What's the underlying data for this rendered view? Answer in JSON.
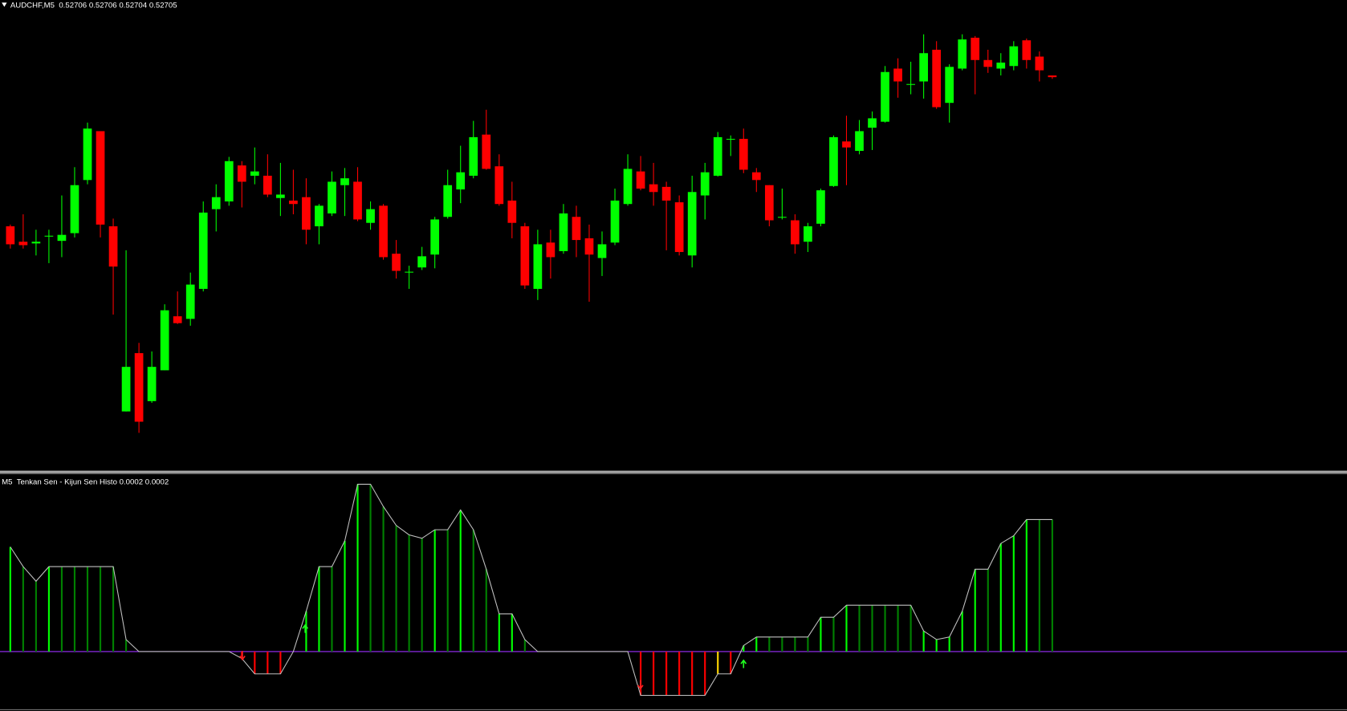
{
  "chart_data": [
    {
      "type": "candlestick",
      "title": "AUDCHF,M5",
      "open": [
        0.52618,
        0.52609,
        0.52608,
        0.52612,
        0.526095,
        0.52614,
        0.52645,
        0.526735,
        0.52618,
        0.5251,
        0.52544,
        0.52516,
        0.52534,
        0.525655,
        0.52564,
        0.525815,
        0.52628,
        0.526325,
        0.526535,
        0.526475,
        0.526475,
        0.526345,
        0.52633,
        0.52635,
        0.52618,
        0.526255,
        0.52642,
        0.52644,
        0.5262,
        0.5263,
        0.52602,
        0.52591,
        0.52594,
        0.526015,
        0.526235,
        0.526395,
        0.526475,
        0.526715,
        0.52653,
        0.52633,
        0.52618,
        0.525815,
        0.526085,
        0.526035,
        0.526235,
        0.52611,
        0.525995,
        0.526085,
        0.52631,
        0.5265,
        0.526425,
        0.52641,
        0.52632,
        0.52601,
        0.52636,
        0.526475,
        0.526685,
        0.52669,
        0.526495,
        0.52642,
        0.52623,
        0.526215,
        0.52609,
        0.526195,
        0.526415,
        0.526675,
        0.52662,
        0.526755,
        0.52679,
        0.5271,
        0.527005,
        0.527025,
        0.52721,
        0.5269,
        0.5271,
        0.52728,
        0.52715,
        0.5271,
        0.527115,
        0.527265,
        0.52717,
        0.52706
      ],
      "high": [
        0.52619,
        0.52625,
        0.52616,
        0.52616,
        0.52636,
        0.526525,
        0.526785,
        0.526735,
        0.526225,
        0.52604,
        0.5255,
        0.52545,
        0.525725,
        0.5258,
        0.52591,
        0.526325,
        0.526425,
        0.526585,
        0.52656,
        0.52664,
        0.5266,
        0.52655,
        0.52651,
        0.52646,
        0.52631,
        0.5265,
        0.52652,
        0.526525,
        0.526325,
        0.52631,
        0.5261,
        0.52595,
        0.52606,
        0.526235,
        0.52651,
        0.52665,
        0.526795,
        0.52686,
        0.5266,
        0.52644,
        0.5262,
        0.52616,
        0.52616,
        0.52631,
        0.5263,
        0.52619,
        0.52615,
        0.5264,
        0.5266,
        0.52659,
        0.52655,
        0.52644,
        0.52636,
        0.526475,
        0.52655,
        0.52673,
        0.52671,
        0.52675,
        0.52652,
        0.52642,
        0.5264,
        0.52625,
        0.5262,
        0.5264,
        0.52671,
        0.526825,
        0.5268,
        0.52685,
        0.527115,
        0.52716,
        0.52714,
        0.5273,
        0.52726,
        0.527125,
        0.5273,
        0.52729,
        0.52721,
        0.52719,
        0.52726,
        0.527275,
        0.5272,
        0.52706
      ],
      "low": [
        0.52605,
        0.52605,
        0.52601,
        0.525965,
        0.526,
        0.526115,
        0.526425,
        0.526115,
        0.525665,
        0.5251,
        0.524975,
        0.52515,
        0.52534,
        0.52561,
        0.5256,
        0.5258,
        0.52615,
        0.5263,
        0.52629,
        0.526425,
        0.52635,
        0.52624,
        0.52625,
        0.526075,
        0.526075,
        0.52624,
        0.52624,
        0.52621,
        0.52616,
        0.525985,
        0.525875,
        0.525815,
        0.525925,
        0.525935,
        0.526225,
        0.526315,
        0.52646,
        0.52651,
        0.5263,
        0.52611,
        0.525815,
        0.52575,
        0.525875,
        0.52602,
        0.526,
        0.52574,
        0.52589,
        0.52607,
        0.5263,
        0.52639,
        0.5263,
        0.52604,
        0.52601,
        0.52594,
        0.52622,
        0.52647,
        0.52659,
        0.52649,
        0.52638,
        0.52618,
        0.52622,
        0.52602,
        0.52603,
        0.52618,
        0.52641,
        0.52642,
        0.5266,
        0.526625,
        0.526785,
        0.52693,
        0.52695,
        0.526925,
        0.526865,
        0.526785,
        0.52709,
        0.52695,
        0.527075,
        0.52706,
        0.52709,
        0.5271,
        0.527025,
        0.52704
      ],
      "close": [
        0.526075,
        0.52607,
        0.52609,
        0.526125,
        0.52613,
        0.52642,
        0.52675,
        0.52619,
        0.525945,
        0.52536,
        0.52504,
        0.52536,
        0.52569,
        0.525615,
        0.52584,
        0.52626,
        0.52635,
        0.52656,
        0.52644,
        0.5265,
        0.526365,
        0.526365,
        0.52631,
        0.52616,
        0.5263,
        0.52644,
        0.52646,
        0.52622,
        0.52628,
        0.526,
        0.52592,
        0.525915,
        0.526005,
        0.52622,
        0.52642,
        0.526495,
        0.5267,
        0.526515,
        0.52631,
        0.5262,
        0.525835,
        0.526075,
        0.526,
        0.526255,
        0.5261,
        0.526015,
        0.526075,
        0.52633,
        0.526515,
        0.5264,
        0.52638,
        0.52633,
        0.52603,
        0.52638,
        0.526495,
        0.5267,
        0.52669,
        0.52651,
        0.52645,
        0.526215,
        0.526235,
        0.526075,
        0.52618,
        0.52639,
        0.5267,
        0.52664,
        0.526735,
        0.52681,
        0.52708,
        0.527025,
        0.52701,
        0.52719,
        0.526875,
        0.52711,
        0.52727,
        0.52715,
        0.52711,
        0.527135,
        0.52723,
        0.52715,
        0.52709,
        0.52705
      ],
      "up_color": "#00ff00",
      "down_color": "#ff0000",
      "ylim": [
        0.52476,
        0.52743
      ]
    },
    {
      "type": "bar",
      "title": "M5  Tenkan Sen - Kijun Sen Histo",
      "values": [
        0.0001586,
        0.0001287,
        0.0001066,
        0.0001287,
        0.0001287,
        0.0001287,
        0.0001287,
        0.0001287,
        0.0001287,
        1.82e-05,
        0,
        0,
        0,
        0,
        0,
        0,
        0,
        0,
        -1.04e-05,
        -3.38e-05,
        -3.38e-05,
        -3.38e-05,
        0,
        6.11e-05,
        0.0001287,
        0.0001287,
        0.0001677,
        0.0002535,
        0.0002535,
        0.0002197,
        0.0001911,
        0.0001768,
        0.0001716,
        0.0001846,
        0.0001846,
        0.0002145,
        0.0001846,
        0.0001248,
        5.72e-05,
        5.72e-05,
        1.82e-05,
        0,
        0,
        0,
        0,
        0,
        0,
        0,
        0,
        -6.63e-05,
        -6.63e-05,
        -6.63e-05,
        -6.63e-05,
        -6.63e-05,
        -6.63e-05,
        -3.38e-05,
        -3.38e-05,
        9.1e-06,
        2.21e-05,
        2.21e-05,
        2.21e-05,
        2.21e-05,
        2.21e-05,
        5.2e-05,
        5.2e-05,
        7.02e-05,
        7.02e-05,
        7.02e-05,
        7.02e-05,
        7.02e-05,
        7.02e-05,
        3.12e-05,
        1.82e-05,
        2.21e-05,
        6.11e-05,
        0.0001248,
        0.0001248,
        0.0001638,
        0.0001755,
        0.0002,
        0.0002,
        0.0002
      ],
      "colors": [
        "#00ff00",
        "#008000",
        "#008000",
        "#00ff00",
        "#008000",
        "#008000",
        "#008000",
        "#008000",
        "#008000",
        "#008000",
        "#008000",
        "#008000",
        "#008000",
        "#008000",
        "#008000",
        "#008000",
        "#008000",
        "#008000",
        "#ff0000",
        "#ff0000",
        "#ff0000",
        "#ff0000",
        "#008000",
        "#00ff00",
        "#00ff00",
        "#008000",
        "#00ff00",
        "#00ff00",
        "#008000",
        "#008000",
        "#008000",
        "#008000",
        "#008000",
        "#00ff00",
        "#008000",
        "#00ff00",
        "#008000",
        "#008000",
        "#00ff00",
        "#00ff00",
        "#008000",
        "#008000",
        "#008000",
        "#008000",
        "#008000",
        "#008000",
        "#008000",
        "#008000",
        "#008000",
        "#ff0000",
        "#ff0000",
        "#ff0000",
        "#ff0000",
        "#ff0000",
        "#ff0000",
        "#ffd700",
        "#ff0000",
        "#00ff00",
        "#00ff00",
        "#008000",
        "#008000",
        "#008000",
        "#008000",
        "#00ff00",
        "#008000",
        "#00ff00",
        "#008000",
        "#008000",
        "#008000",
        "#008000",
        "#008000",
        "#00ff00",
        "#00ff00",
        "#00ff00",
        "#00ff00",
        "#00ff00",
        "#008000",
        "#00ff00",
        "#00ff00",
        "#00ff00",
        "#008000",
        "#008000"
      ],
      "line_color": "#c0c0c0",
      "zero_line_color": "#9b30ff",
      "ylim": [
        -9e-05,
        0.000269
      ]
    }
  ]
}
